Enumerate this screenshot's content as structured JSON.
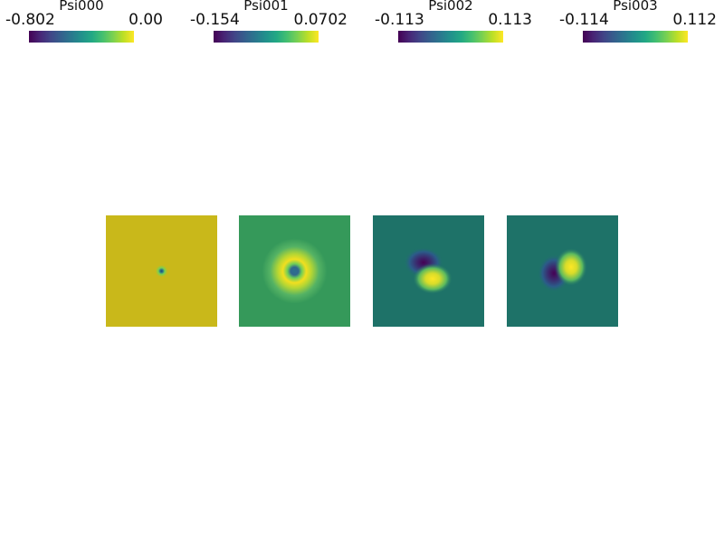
{
  "colorbars": [
    {
      "title": "Psi000",
      "min": "-0.802",
      "max": "0.00"
    },
    {
      "title": "Psi001",
      "min": "-0.154",
      "max": "0.0702"
    },
    {
      "title": "Psi002",
      "min": "-0.113",
      "max": "0.113"
    },
    {
      "title": "Psi003",
      "min": "-0.114",
      "max": "0.112"
    }
  ],
  "colormap": "viridis",
  "panels": [
    {
      "field": "Psi000",
      "background_color": "#c9b81a"
    },
    {
      "field": "Psi001",
      "background_color": "#35995a"
    },
    {
      "field": "Psi002",
      "background_color": "#1e7268"
    },
    {
      "field": "Psi003",
      "background_color": "#1e7268"
    }
  ]
}
